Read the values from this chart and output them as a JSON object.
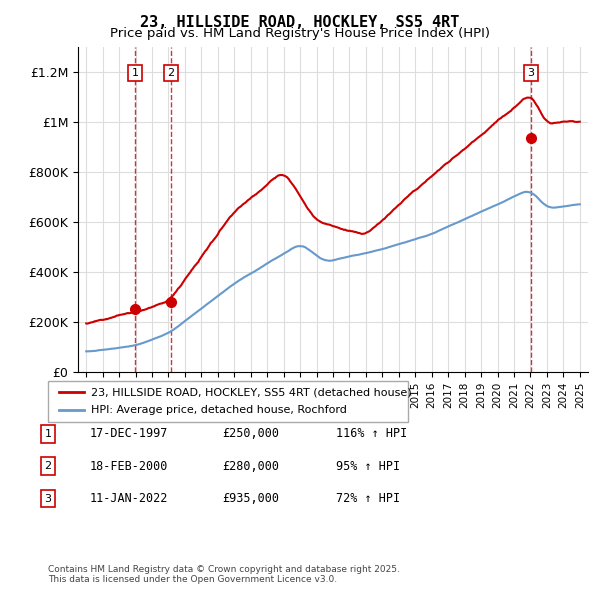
{
  "title": "23, HILLSIDE ROAD, HOCKLEY, SS5 4RT",
  "subtitle": "Price paid vs. HM Land Registry's House Price Index (HPI)",
  "legend_line1": "23, HILLSIDE ROAD, HOCKLEY, SS5 4RT (detached house)",
  "legend_line2": "HPI: Average price, detached house, Rochford",
  "purchase_color": "#cc0000",
  "hpi_color": "#6699cc",
  "annotation_color": "#cc0000",
  "annotation_bg": "#ffffff",
  "vline_color": "#cc0000",
  "purchases": [
    {
      "label": "1",
      "date_num": 1997.96,
      "price": 250000,
      "pct": "116% ↑ HPI"
    },
    {
      "label": "2",
      "date_num": 2000.13,
      "price": 280000,
      "pct": "95% ↑ HPI"
    },
    {
      "label": "3",
      "date_num": 2022.03,
      "price": 935000,
      "pct": "72% ↑ HPI"
    }
  ],
  "table_rows": [
    {
      "num": "1",
      "date": "17-DEC-1997",
      "price": "£250,000",
      "pct": "116% ↑ HPI"
    },
    {
      "num": "2",
      "date": "18-FEB-2000",
      "price": "£280,000",
      "pct": "95% ↑ HPI"
    },
    {
      "num": "3",
      "date": "11-JAN-2022",
      "price": "£935,000",
      "pct": "72% ↑ HPI"
    }
  ],
  "footer": "Contains HM Land Registry data © Crown copyright and database right 2025.\nThis data is licensed under the Open Government Licence v3.0.",
  "ylim": [
    0,
    1300000
  ],
  "xlim_start": 1994.5,
  "xlim_end": 2025.5,
  "yticks": [
    0,
    200000,
    400000,
    600000,
    800000,
    1000000,
    1200000
  ],
  "ytick_labels": [
    "£0",
    "£200K",
    "£400K",
    "£600K",
    "£800K",
    "£1M",
    "£1.2M"
  ]
}
